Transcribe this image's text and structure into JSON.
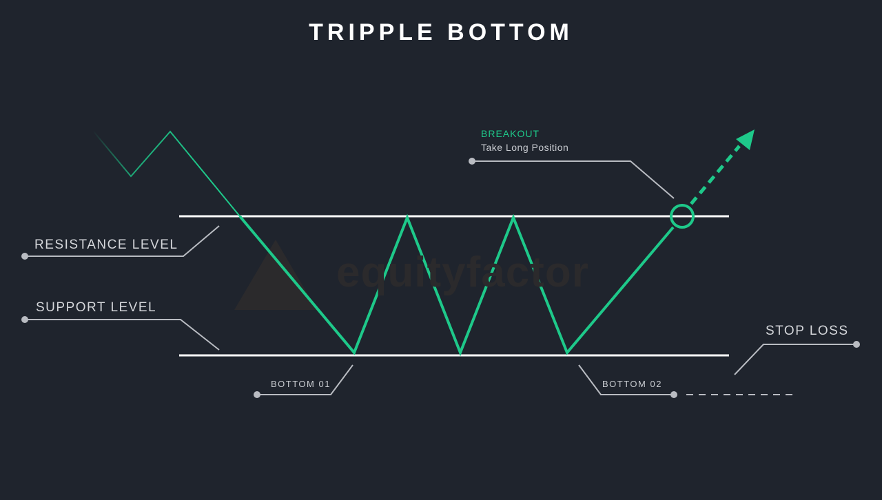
{
  "title": "TRIPPLE BOTTOM",
  "labels": {
    "resistance": "RESISTANCE LEVEL",
    "support": "SUPPORT LEVEL",
    "bottom1": "BOTTOM 01",
    "bottom2": "BOTTOM 02",
    "stop_loss": "STOP LOSS",
    "breakout": "BREAKOUT",
    "breakout_sub": "Take Long Position"
  },
  "watermark": "equityfactor",
  "colors": {
    "background": "#1f242d",
    "price_line": "#1ec98a",
    "level_lines": "#ffffff",
    "leader_lines": "#b9bcc2",
    "watermark": "#2b2a2c"
  }
}
